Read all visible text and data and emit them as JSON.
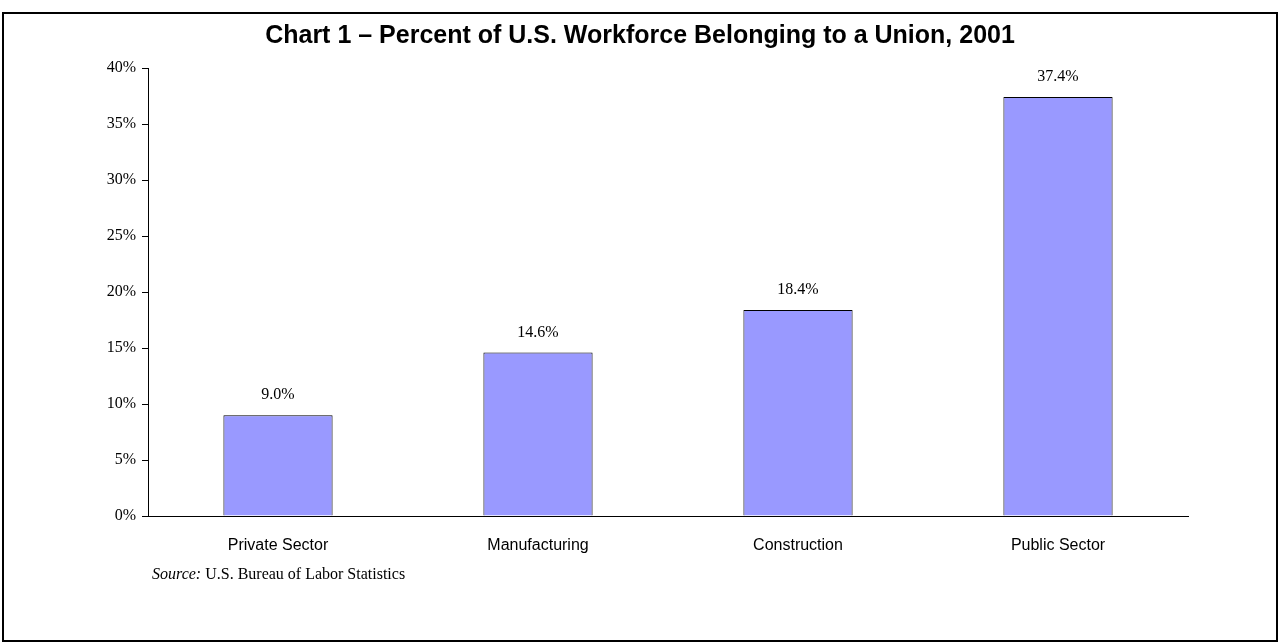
{
  "chart_data": {
    "type": "bar",
    "title": "Chart 1 – Percent of U.S. Workforce Belonging to a Union, 2001",
    "categories": [
      "Private Sector",
      "Manufacturing",
      "Construction",
      "Public Sector"
    ],
    "values": [
      9.0,
      14.6,
      18.4,
      37.4
    ],
    "color": "#9999ff",
    "value_labels": [
      "9.0%",
      "14.6%",
      "18.4%",
      "37.4%"
    ],
    "ylim": [
      0,
      40
    ],
    "yticks": [
      {
        "value": 0,
        "label": "0%"
      },
      {
        "value": 5,
        "label": "5%"
      },
      {
        "value": 10,
        "label": "10%"
      },
      {
        "value": 15,
        "label": "15%"
      },
      {
        "value": 20,
        "label": "20%"
      },
      {
        "value": 25,
        "label": "25%"
      },
      {
        "value": 30,
        "label": "30%"
      },
      {
        "value": 35,
        "label": "35%"
      },
      {
        "value": 40,
        "label": "40%"
      }
    ],
    "grid": false,
    "legend": false,
    "annotations": [
      "Source: U.S. Bureau of Labor Statistics"
    ]
  }
}
